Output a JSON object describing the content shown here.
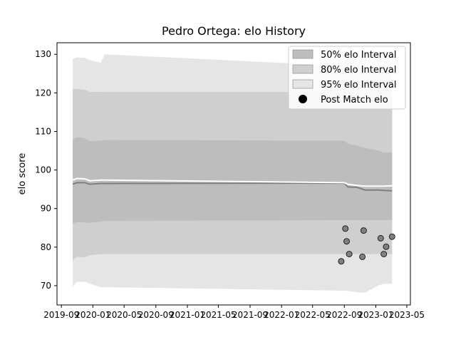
{
  "chart_data": {
    "type": "line",
    "title": "Pedro Ortega: elo History",
    "xlabel": "",
    "ylabel": "elo score",
    "xlim": [
      "2019-08-15",
      "2023-05-15"
    ],
    "ylim": [
      65,
      133
    ],
    "x_ticks": [
      "2019-09",
      "2020-01",
      "2020-05",
      "2020-09",
      "2021-01",
      "2021-05",
      "2021-09",
      "2022-01",
      "2022-05",
      "2022-09",
      "2023-01",
      "2023-05"
    ],
    "y_ticks": [
      70,
      80,
      90,
      100,
      110,
      120,
      130
    ],
    "grid": false,
    "legend_position": "top-right",
    "legend": [
      "50% elo Interval",
      "80% elo Interval",
      "95% elo Interval",
      "Post Match elo"
    ],
    "colors": {
      "band_95": "#e5e5e5",
      "band_80": "#cfcfcf",
      "band_50": "#bdbdbd",
      "mean_line": "#808080",
      "median_line": "#ffffff",
      "points": "#808080"
    },
    "x": [
      "2019-10-15",
      "2019-11-01",
      "2019-12-01",
      "2019-12-20",
      "2020-02-01",
      "2020-02-15",
      "2022-09-01",
      "2022-09-15",
      "2022-10-20",
      "2022-11-20",
      "2023-01-10",
      "2023-02-01",
      "2023-03-05"
    ],
    "series": [
      {
        "key": "band_95",
        "legend": "95% elo Interval",
        "upper": [
          128.8,
          129.2,
          129.1,
          128.5,
          127.8,
          130.0,
          127.0,
          127.0,
          127.0,
          127.0,
          127.0,
          127.0,
          127.0
        ],
        "lower": [
          69.8,
          71.0,
          71.0,
          70.5,
          69.6,
          69.6,
          68.7,
          68.6,
          68.3,
          68.2,
          70.0,
          70.5,
          70.5
        ]
      },
      {
        "key": "band_80",
        "legend": "80% elo Interval",
        "upper": [
          121.0,
          121.0,
          120.8,
          120.3,
          120.2,
          120.2,
          120.2,
          120.2,
          120.2,
          120.2,
          120.2,
          120.2,
          120.2
        ],
        "lower": [
          76.6,
          77.5,
          77.3,
          77.9,
          78.2,
          78.2,
          78.2,
          78.2,
          78.2,
          78.2,
          78.2,
          78.2,
          78.2
        ]
      },
      {
        "key": "band_50",
        "legend": "50% elo Interval",
        "upper": [
          108.0,
          108.5,
          108.3,
          107.5,
          107.6,
          107.8,
          107.6,
          106.8,
          106.4,
          105.7,
          105.1,
          104.5,
          104.6
        ],
        "lower": [
          86.1,
          86.5,
          86.4,
          86.3,
          86.6,
          86.8,
          87.0,
          87.0,
          87.0,
          87.0,
          87.0,
          87.0,
          87.0
        ]
      },
      {
        "key": "mean_line",
        "values": [
          96.3,
          96.7,
          96.7,
          96.3,
          96.5,
          96.5,
          96.6,
          95.6,
          95.5,
          94.8,
          94.8,
          94.7,
          94.6
        ]
      },
      {
        "key": "median_line",
        "values": [
          97.4,
          97.8,
          97.7,
          97.2,
          97.4,
          97.4,
          96.7,
          96.3,
          96.0,
          95.8,
          95.8,
          95.8,
          95.9
        ]
      }
    ],
    "post_match": {
      "legend": "Post Match elo",
      "points": [
        {
          "x": "2022-08-20",
          "y": 76.3
        },
        {
          "x": "2022-09-05",
          "y": 84.8
        },
        {
          "x": "2022-09-10",
          "y": 81.5
        },
        {
          "x": "2022-09-20",
          "y": 78.2
        },
        {
          "x": "2022-11-10",
          "y": 77.5
        },
        {
          "x": "2022-11-15",
          "y": 84.3
        },
        {
          "x": "2023-01-20",
          "y": 82.3
        },
        {
          "x": "2023-02-01",
          "y": 78.2
        },
        {
          "x": "2023-02-10",
          "y": 80.1
        },
        {
          "x": "2023-03-05",
          "y": 82.7
        }
      ]
    }
  }
}
